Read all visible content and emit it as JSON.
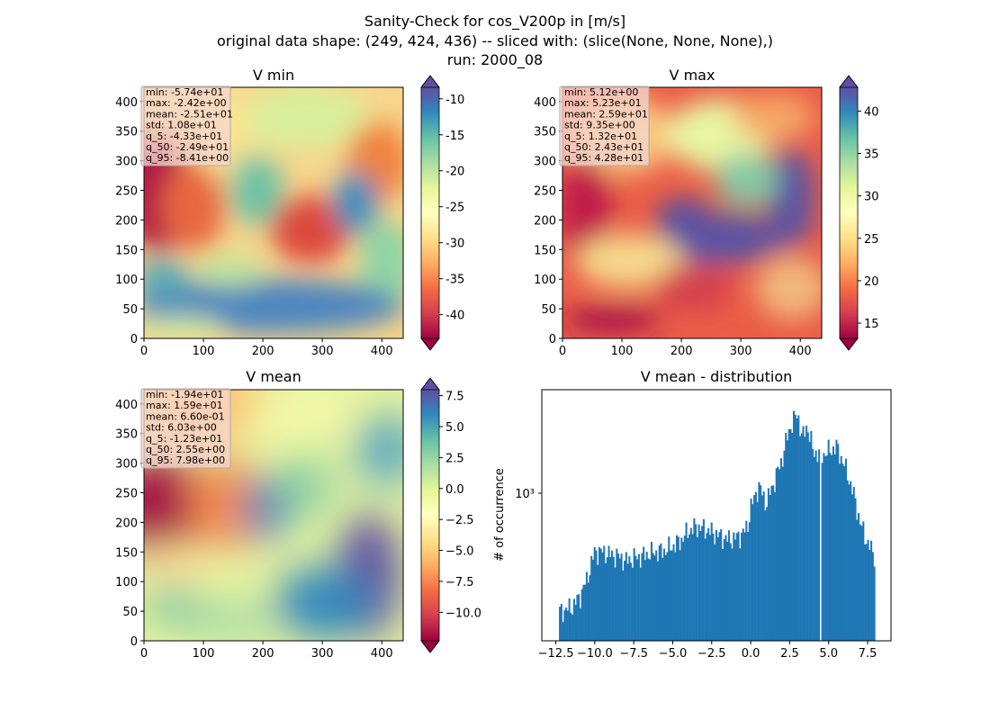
{
  "suptitle": {
    "line1": "Sanity-Check for cos_V200p in [m/s]",
    "line2": "original data shape: (249, 424, 436) -- sliced with: (slice(None, None, None),)",
    "line3": "run: 2000_08"
  },
  "colors": {
    "spectral": [
      "#9e0142",
      "#d53e4f",
      "#f46d43",
      "#fdae61",
      "#fee08b",
      "#ffffbf",
      "#e6f598",
      "#abdda4",
      "#66c2a5",
      "#3288bd",
      "#5e4fa2"
    ],
    "histogram_bar": "#1f77b4"
  },
  "chart_data": [
    {
      "type": "heatmap",
      "title": "V min",
      "x_ticks": [
        "0",
        "100",
        "200",
        "300",
        "400"
      ],
      "y_ticks": [
        "0",
        "50",
        "100",
        "150",
        "200",
        "250",
        "300",
        "350",
        "400"
      ],
      "xlim": [
        0,
        436
      ],
      "ylim": [
        0,
        424
      ],
      "colormap": "Spectral",
      "colorbar": {
        "vmin": -43.3,
        "vmax": -8.4,
        "ticks": [
          "-10",
          "-15",
          "-20",
          "-25",
          "-30",
          "-35",
          "-40"
        ],
        "tick_values": [
          -10,
          -15,
          -20,
          -25,
          -30,
          -35,
          -40
        ],
        "extend": "both"
      },
      "stats": [
        "min: -5.74e+01",
        "max: -2.42e+00",
        "mean: -2.51e+01",
        "std: 1.08e+01",
        "q_5: -4.33e+01",
        "q_50: -2.49e+01",
        "q_95: -8.41e+00"
      ]
    },
    {
      "type": "heatmap",
      "title": "V max",
      "x_ticks": [
        "0",
        "100",
        "200",
        "300",
        "400"
      ],
      "y_ticks": [
        "0",
        "50",
        "100",
        "150",
        "200",
        "250",
        "300",
        "350",
        "400"
      ],
      "xlim": [
        0,
        436
      ],
      "ylim": [
        0,
        424
      ],
      "colormap": "Spectral",
      "colorbar": {
        "vmin": 13.2,
        "vmax": 42.8,
        "ticks": [
          "40",
          "35",
          "30",
          "25",
          "20",
          "15"
        ],
        "tick_values": [
          40,
          35,
          30,
          25,
          20,
          15
        ],
        "extend": "both"
      },
      "stats": [
        "min: 5.12e+00",
        "max: 5.23e+01",
        "mean: 2.59e+01",
        "std: 9.35e+00",
        "q_5: 1.32e+01",
        "q_50: 2.43e+01",
        "q_95: 4.28e+01"
      ]
    },
    {
      "type": "heatmap",
      "title": "V mean",
      "x_ticks": [
        "0",
        "100",
        "200",
        "300",
        "400"
      ],
      "y_ticks": [
        "0",
        "50",
        "100",
        "150",
        "200",
        "250",
        "300",
        "350",
        "400"
      ],
      "xlim": [
        0,
        436
      ],
      "ylim": [
        0,
        424
      ],
      "colormap": "Spectral",
      "colorbar": {
        "vmin": -12.3,
        "vmax": 7.98,
        "ticks": [
          "7.5",
          "5.0",
          "2.5",
          "0.0",
          "−2.5",
          "−5.0",
          "−7.5",
          "−10.0"
        ],
        "tick_values": [
          7.5,
          5.0,
          2.5,
          0.0,
          -2.5,
          -5.0,
          -7.5,
          -10.0
        ],
        "extend": "both"
      },
      "stats": [
        "min: -1.94e+01",
        "max: 1.59e+01",
        "mean: 6.60e-01",
        "std: 6.03e+00",
        "q_5: -1.23e+01",
        "q_50: 2.55e+00",
        "q_95: 7.98e+00"
      ]
    },
    {
      "type": "bar",
      "title": "V mean - distribution",
      "ylabel": "# of occurrence",
      "y_scale": "log",
      "y_tick_label": "10³",
      "xlim": [
        -13.4,
        9.0
      ],
      "x_ticks": [
        "−12.5",
        "−10.0",
        "−7.5",
        "−5.0",
        "−2.5",
        "0.0",
        "2.5",
        "5.0",
        "7.5"
      ],
      "x_tick_values": [
        -12.5,
        -10.0,
        -7.5,
        -5.0,
        -2.5,
        0.0,
        2.5,
        5.0,
        7.5
      ],
      "bin_range": [
        -12.3,
        7.98
      ],
      "gap_at": 4.5,
      "profile_x": [
        -12.3,
        -11.5,
        -11.0,
        -10.5,
        -10.0,
        -9.5,
        -9.0,
        -8.5,
        -8.0,
        -7.5,
        -7.0,
        -6.5,
        -6.0,
        -5.5,
        -5.0,
        -4.5,
        -4.0,
        -3.5,
        -3.0,
        -2.5,
        -2.0,
        -1.5,
        -1.0,
        -0.5,
        -0.2,
        0.0,
        0.2,
        0.5,
        1.0,
        1.5,
        2.0,
        2.5,
        3.0,
        3.3,
        3.6,
        4.0,
        4.5,
        5.0,
        5.5,
        6.0,
        6.5,
        7.0,
        7.5,
        7.98
      ],
      "profile_y": [
        270,
        285,
        320,
        400,
        560,
        560,
        540,
        530,
        500,
        520,
        530,
        550,
        560,
        570,
        600,
        640,
        720,
        760,
        740,
        710,
        680,
        650,
        660,
        700,
        760,
        960,
        1050,
        1250,
        1000,
        1300,
        1700,
        2500,
        3000,
        2200,
        2600,
        1900,
        1800,
        1900,
        2000,
        1600,
        1200,
        800,
        620,
        530
      ]
    }
  ]
}
